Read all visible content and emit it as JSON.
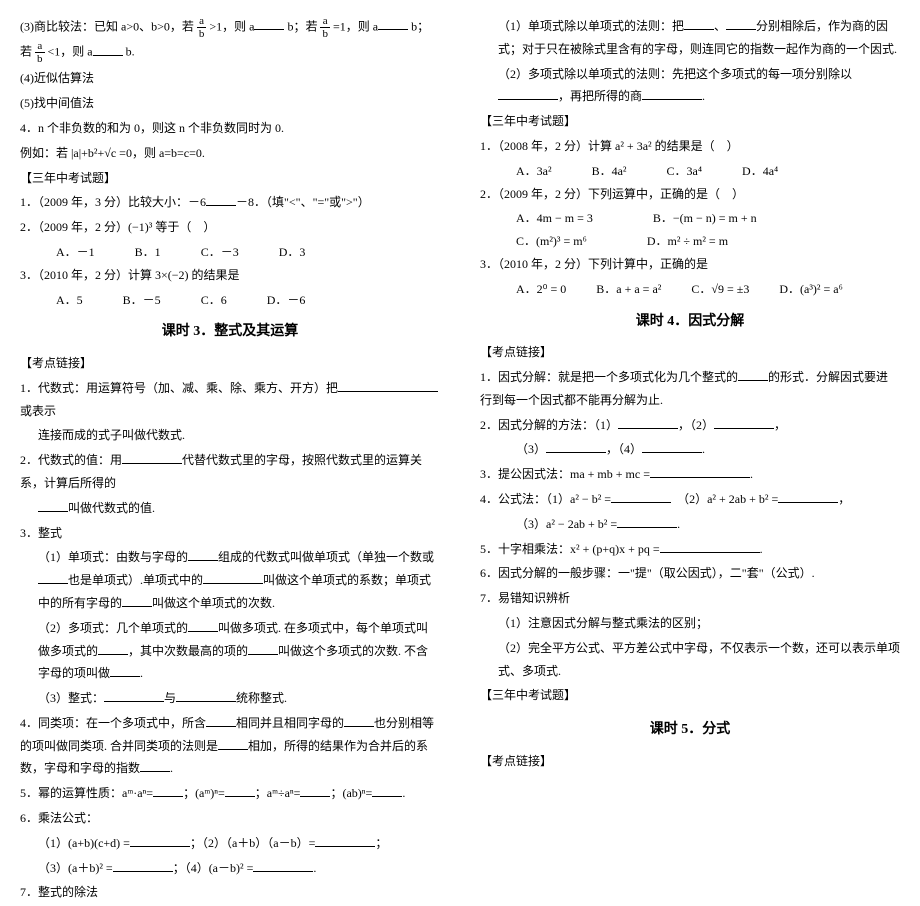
{
  "left": {
    "l3": "(3)商比较法：已知 a>0、b>0，若",
    "l3a": ">1，则 a",
    "l3b": "b；若",
    "l3c": "=1，则 a",
    "l3d": "b；若",
    "l3e": "<1，则 a",
    "l3f": "b.",
    "l4": "(4)近似估算法",
    "l5": "(5)找中间值法",
    "p4": "4．n 个非负数的和为 0，则这 n 个非负数同时为 0.",
    "p4ex": "例如：若 |a|+b²+√c =0，则 a=b=c=0.",
    "exams": "【三年中考试题】",
    "q1": "1．（2009 年，3 分）比较大小：－6",
    "q1b": "－8．（填\"<\"、\"=\"或\">\"）",
    "q2": "2．（2009 年，2 分）(−1)³ 等于（　）",
    "q2a": "A．－1",
    "q2b": "B．1",
    "q2c": "C．－3",
    "q2d": "D．3",
    "q3": "3．（2010 年，2 分）计算 3×(−2) 的结果是",
    "q3a": "A．5",
    "q3b": "B．－5",
    "q3c": "C．6",
    "q3d": "D．－6",
    "title3": "课时 3．整式及其运算",
    "kd": "【考点链接】",
    "k1a": "1．代数式：用运算符号（加、减、乘、除、乘方、开方）把",
    "k1b": "或表示",
    "k1c": "连接而成的式子叫做代数式.",
    "k2a": "2．代数式的值：用",
    "k2b": "代替代数式里的字母，按照代数式里的运算关系，计算后所得的",
    "k2c": "叫做代数式的值.",
    "k3": "3．整式",
    "k31a": "（1）单项式：由数与字母的",
    "k31b": "组成的代数式叫做单项式（单独一个数或",
    "k31c": "也是单项式）.单项式中的",
    "k31d": "叫做这个单项式的系数；单项式中的所有字母的",
    "k31e": "叫做这个单项式的次数.",
    "k32a": "（2）多项式：几个单项式的",
    "k32b": "叫做多项式. 在多项式中，每个单项式叫做多项式的",
    "k32c": "，其中次数最高的项的",
    "k32d": "叫做这个多项式的次数. 不含字母的项叫做",
    "k32e": ".",
    "k33a": "（3）整式：",
    "k33b": "与",
    "k33c": "统称整式.",
    "k4a": "4．同类项：在一个多项式中，所含",
    "k4b": "相同并且相同字母的",
    "k4c": "也分别相等的项叫做同类项. 合并同类项的法则是",
    "k4d": "相加，所得的结果作为合并后的系数，字母和字母的指数",
    "k4e": ".",
    "k5a": "5．幂的运算性质：aᵐ·aⁿ=",
    "k5b": "；(aᵐ)ⁿ=",
    "k5c": "；aᵐ÷aⁿ=",
    "k5d": "；(ab)ⁿ=",
    "k5e": ".",
    "k6": "6．乘法公式：",
    "k61a": "（1）(a+b)(c+d) =",
    "k61b": "；（2）（a＋b）（a－b）=",
    "k61c": "；",
    "k62a": "（3）(a＋b)² =",
    "k62b": "；（4）(a－b)² =",
    "k62c": ".",
    "k7": "7．整式的除法"
  },
  "right": {
    "r1a": "（1）单项式除以单项式的法则：把",
    "r1b": "、",
    "r1c": "分别相除后，作为商的因式；对于只在被除式里含有的字母，则连同它的指数一起作为商的一个因式.",
    "r2a": "（2）多项式除以单项式的法则：先把这个多项式的每一项分别除以",
    "r2b": "，再把所得的商",
    "r2c": ".",
    "exams": "【三年中考试题】",
    "rq1": "1．（2008 年，2 分）计算 a² + 3a² 的结果是（　）",
    "rq1a": "A．3a²",
    "rq1b": "B．4a²",
    "rq1c": "C．3a⁴",
    "rq1d": "D．4a⁴",
    "rq2": "2．（2009 年，2 分）下列运算中，正确的是（　）",
    "rq2a": "A．4m − m = 3",
    "rq2b": "B．−(m − n) = m + n",
    "rq2c": "C．(m²)³ = m⁶",
    "rq2d": "D．m² ÷ m² = m",
    "rq3": "3．（2010 年，2 分）下列计算中，正确的是",
    "rq3a": "A．2⁰ = 0",
    "rq3b": "B．a + a = a²",
    "rq3c": "C．√9 = ±3",
    "rq3d": "D．(a³)² = a⁶",
    "title4": "课时 4．因式分解",
    "kd": "【考点链接】",
    "f1a": "1．因式分解：就是把一个多项式化为几个整式的",
    "f1b": "的形式．分解因式要进行到每一个因式都不能再分解为止.",
    "f2a": "2．因式分解的方法：（1）",
    "f2b": "，（2）",
    "f2c": "，",
    "f2d": "（3）",
    "f2e": "，（4）",
    "f2f": ".",
    "f3a": "3．提公因式法：ma + mb + mc =",
    "f3b": ".",
    "f4a": "4．公式法：（1）a² − b² =",
    "f4b": "　（2）a² + 2ab + b² =",
    "f4c": "，",
    "f4d": "（3）a² − 2ab + b² =",
    "f4e": ".",
    "f5a": "5．十字相乘法：x² + (p+q)x + pq =",
    "f5b": ".",
    "f6": "6．因式分解的一般步骤：一\"提\"（取公因式），二\"套\"（公式）.",
    "f7": "7．易错知识辨析",
    "f71": "（1）注意因式分解与整式乘法的区别；",
    "f72": "（2）完全平方公式、平方差公式中字母，不仅表示一个数，还可以表示单项式、多项式.",
    "exams2": "【三年中考试题】",
    "title5": "课时 5．分式",
    "kd2": "【考点链接】"
  }
}
